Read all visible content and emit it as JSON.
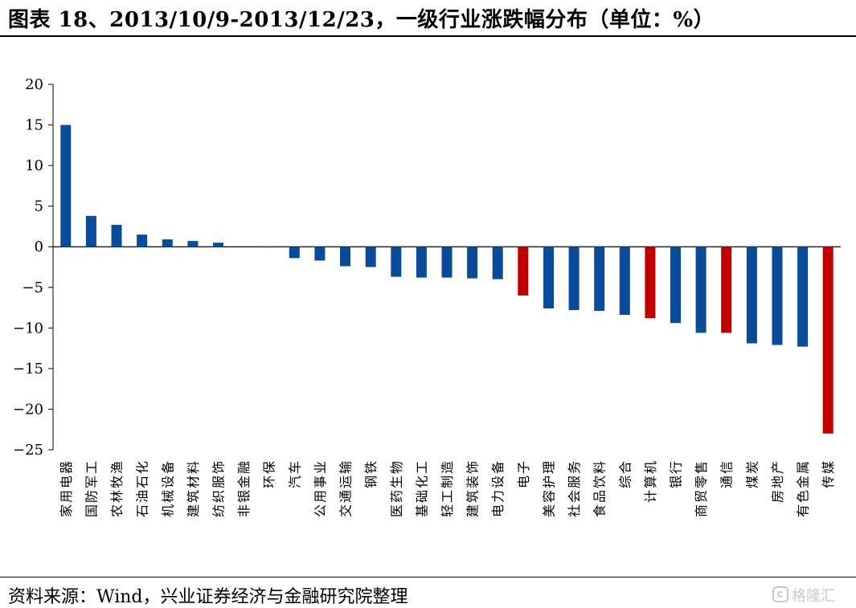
{
  "title": "图表 18、2013/10/9-2013/12/23，一级行业涨跌幅分布（单位：%）",
  "source": "资料来源：Wind，兴业证券经济与金融研究院整理",
  "watermark": "格隆汇",
  "colors": {
    "negative_highlight": "#c00000",
    "default_bar": "#0a4c9a",
    "axis": "#000000"
  },
  "chart_data": {
    "type": "bar",
    "title": "",
    "xlabel": "",
    "ylabel": "",
    "ylim": [
      -25,
      20
    ],
    "yticks": [
      20,
      15,
      10,
      5,
      0,
      -5,
      -10,
      -15,
      -20,
      -25
    ],
    "ytick_labels": [
      "20",
      "15",
      "10",
      "5",
      "0",
      "−5",
      "−10",
      "−15",
      "−20",
      "−25"
    ],
    "categories": [
      "家用电器",
      "国防军工",
      "农林牧渔",
      "石油石化",
      "机械设备",
      "建筑材料",
      "纺织服饰",
      "非银金融",
      "环保",
      "汽车",
      "公用事业",
      "交通运输",
      "钢铁",
      "医药生物",
      "基础化工",
      "轻工制造",
      "建筑装饰",
      "电力设备",
      "电子",
      "美容护理",
      "社会服务",
      "食品饮料",
      "综合",
      "计算机",
      "银行",
      "商贸零售",
      "通信",
      "煤炭",
      "房地产",
      "有色金属",
      "传媒"
    ],
    "values": [
      15.0,
      3.8,
      2.7,
      1.5,
      0.9,
      0.7,
      0.5,
      0.0,
      -0.1,
      -1.4,
      -1.7,
      -2.4,
      -2.5,
      -3.7,
      -3.8,
      -3.8,
      -3.9,
      -4.0,
      -6.0,
      -7.6,
      -7.8,
      -7.9,
      -8.4,
      -8.8,
      -9.4,
      -10.6,
      -10.6,
      -11.9,
      -12.1,
      -12.3,
      -23.0
    ],
    "highlighted_categories": [
      "电子",
      "计算机",
      "通信",
      "传媒"
    ],
    "grid": false,
    "legend": "none"
  }
}
